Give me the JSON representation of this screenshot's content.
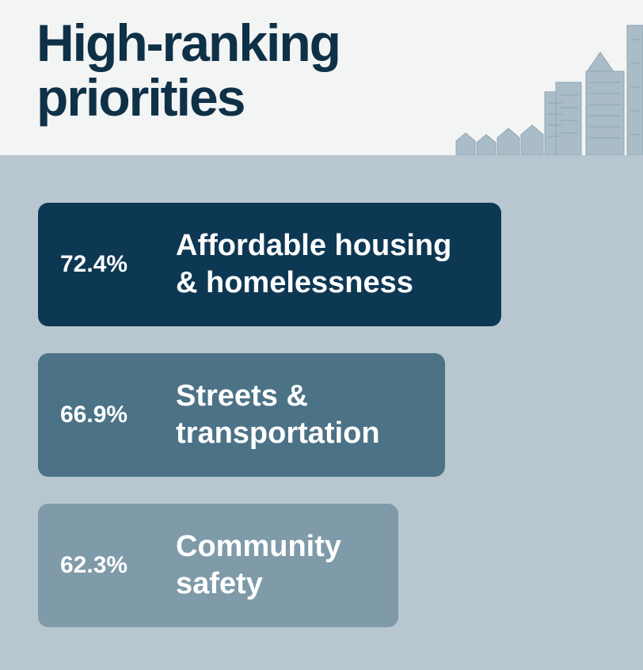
{
  "header": {
    "title": "High-ranking\npriorities",
    "illustration": "city-skyline-icon"
  },
  "colors": {
    "header_bg": "#f3f4f4",
    "title": "#0e3147",
    "plot_bg": "#b7c6cf",
    "text": "#ffffff"
  },
  "chart_data": {
    "type": "bar",
    "orientation": "horizontal",
    "categories": [
      "Affordable housing\n& homelessness",
      "Streets &\ntransportation",
      "Community\nsafety"
    ],
    "values": [
      72.4,
      66.9,
      62.3
    ],
    "value_labels": [
      "72.4%",
      "66.9%",
      "62.3%"
    ],
    "bar_colors": [
      "#0d3853",
      "#4c7286",
      "#7f9aa8"
    ],
    "title": "High-ranking\npriorities",
    "xlabel": "",
    "ylabel": "",
    "xlim": [
      0,
      100
    ],
    "grid": false,
    "legend": "none"
  }
}
